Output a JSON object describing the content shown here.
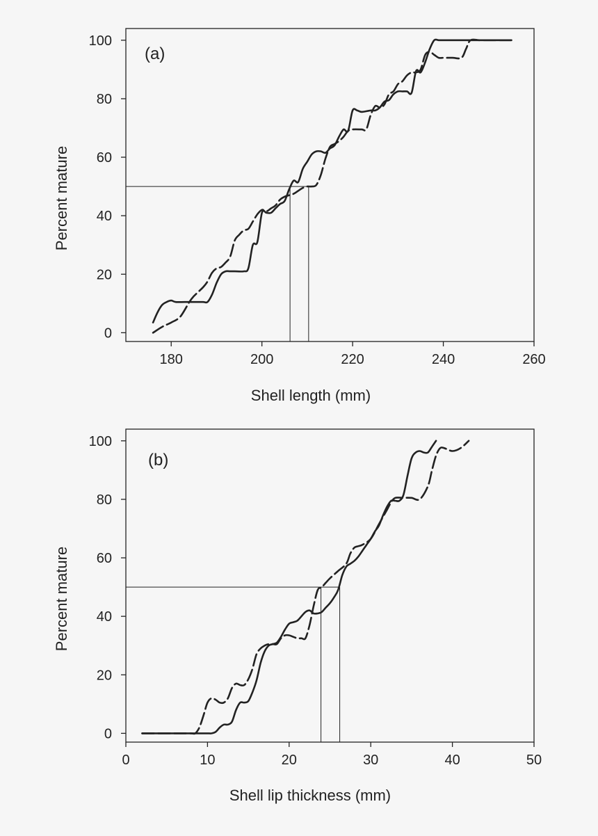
{
  "chart_data": [
    {
      "type": "line",
      "panel_label": "(a)",
      "xlabel": "Shell length (mm)",
      "ylabel": "Percent mature",
      "xlim": [
        170,
        260
      ],
      "ylim": [
        -3,
        104
      ],
      "xticks": [
        "180",
        "200",
        "220",
        "240",
        "260"
      ],
      "yticks": [
        "0",
        "20",
        "40",
        "60",
        "80",
        "100"
      ],
      "legend": "none",
      "grid": false,
      "reference_lines": {
        "y50": 50,
        "x50": [
          206.2,
          210.3
        ]
      },
      "series": [
        {
          "style": "solid",
          "color": "#222222",
          "x": [
            176,
            177,
            178,
            179,
            180,
            181,
            183,
            185,
            187,
            188,
            189,
            190,
            191,
            192,
            193,
            194,
            196,
            197,
            198,
            199,
            200,
            201,
            202,
            203,
            204,
            205,
            206,
            207,
            208,
            209,
            210,
            211,
            212,
            213,
            214,
            215,
            216,
            217,
            218,
            219,
            220,
            221,
            222,
            224,
            225,
            226,
            227,
            228,
            229,
            230,
            231,
            232,
            233,
            234,
            235,
            236,
            237,
            238,
            239,
            240,
            241,
            243,
            245,
            247,
            249,
            251,
            253,
            255
          ],
          "y": [
            3.5,
            7,
            9.5,
            10.5,
            11,
            10.5,
            10.5,
            10.5,
            10.5,
            10.5,
            13,
            17,
            20,
            21,
            21,
            21,
            21,
            22,
            30,
            31,
            41,
            41,
            41,
            42.5,
            44,
            45,
            49,
            52,
            51.5,
            56,
            58.5,
            61,
            62,
            62,
            61.5,
            63,
            64,
            67,
            69.5,
            69,
            76,
            76,
            75.5,
            76,
            76,
            77,
            79,
            79.5,
            81.5,
            82.5,
            82.5,
            82.5,
            82,
            89.5,
            89,
            92.5,
            97,
            100,
            100,
            100,
            100,
            100,
            100,
            100,
            100,
            100,
            100,
            100
          ]
        },
        {
          "style": "dashed",
          "color": "#222222",
          "x": [
            176,
            178,
            180,
            182,
            184,
            185,
            187,
            188,
            189,
            190,
            191,
            192,
            193,
            194,
            195,
            196,
            197,
            198,
            199,
            200,
            201,
            202,
            203,
            204,
            205,
            206,
            207,
            208,
            209,
            210,
            211,
            212,
            213,
            214,
            215,
            216,
            217,
            218,
            219,
            220,
            222,
            223,
            224,
            225,
            226,
            227,
            228,
            229,
            230,
            231,
            232,
            233,
            234,
            235,
            236,
            237,
            238,
            239,
            240,
            242,
            244,
            245,
            246,
            248,
            250,
            252,
            255
          ],
          "y": [
            0,
            2,
            3.5,
            5.5,
            10.5,
            12.5,
            15.5,
            17.5,
            20.5,
            22,
            22.5,
            24,
            26,
            31.5,
            33.5,
            35,
            35.5,
            38,
            40.5,
            42,
            41.5,
            42.5,
            43.5,
            45.5,
            46.5,
            47,
            47.5,
            48.5,
            49.5,
            50,
            50,
            50.5,
            54,
            59.5,
            63.5,
            64.5,
            65.5,
            67,
            69,
            69.5,
            69.5,
            69.5,
            74.5,
            77.5,
            77,
            78,
            81.5,
            82.5,
            85,
            86,
            88,
            89,
            89,
            90,
            95,
            96,
            95,
            94,
            94,
            94,
            94,
            97,
            100,
            100,
            100,
            100,
            100
          ]
        }
      ]
    },
    {
      "type": "line",
      "panel_label": "(b)",
      "xlabel": "Shell lip thickness (mm)",
      "ylabel": "Percent mature",
      "xlim": [
        0,
        50
      ],
      "ylim": [
        -3,
        104
      ],
      "xticks": [
        "0",
        "10",
        "20",
        "30",
        "40",
        "50"
      ],
      "yticks": [
        "0",
        "20",
        "40",
        "60",
        "80",
        "100"
      ],
      "legend": "none",
      "grid": false,
      "reference_lines": {
        "y50": 50,
        "x50": [
          23.9,
          26.2
        ]
      },
      "series": [
        {
          "style": "solid",
          "color": "#222222",
          "x": [
            2,
            4,
            6,
            8,
            9,
            10,
            10.5,
            11,
            11.5,
            12,
            12.5,
            13,
            13.5,
            14,
            14.5,
            15,
            15.5,
            16,
            16.5,
            17,
            17.5,
            18,
            18.5,
            19,
            19.5,
            20,
            20.5,
            21,
            21.5,
            22,
            22.5,
            23,
            23.5,
            24,
            24.5,
            25,
            25.5,
            26,
            26.5,
            27,
            27.5,
            28,
            28.5,
            29,
            29.5,
            30,
            30.5,
            31,
            31.5,
            32,
            32.5,
            33,
            33.5,
            34,
            34.5,
            35,
            35.5,
            36,
            36.5,
            37,
            37.5,
            38
          ],
          "y": [
            0,
            0,
            0,
            0,
            0,
            0,
            0,
            0.5,
            2,
            3,
            3,
            4,
            8,
            10.5,
            10.5,
            11,
            14,
            18,
            24,
            28,
            30,
            30.5,
            31,
            33,
            35.5,
            37.5,
            38,
            38.5,
            40,
            41.5,
            42,
            41,
            41,
            41.5,
            43,
            44.5,
            46.5,
            49,
            54,
            57,
            58,
            59,
            60.5,
            62.5,
            64.5,
            66.5,
            69,
            71,
            74.5,
            77.5,
            79.5,
            79.5,
            79.5,
            81.5,
            88,
            94,
            96,
            96.5,
            96,
            96,
            98,
            100
          ]
        },
        {
          "style": "dashed",
          "color": "#222222",
          "x": [
            2,
            4,
            6,
            7,
            8,
            8.5,
            9,
            9.5,
            10,
            10.5,
            11,
            11.5,
            12,
            12.5,
            13,
            13.5,
            14,
            14.5,
            15,
            15.5,
            16,
            16.5,
            17,
            17.5,
            18,
            18.5,
            19,
            19.5,
            20,
            20.5,
            21,
            21.5,
            22,
            22.5,
            23,
            23.5,
            24,
            24.5,
            25,
            26,
            27,
            27.5,
            28,
            28.5,
            29,
            30,
            31,
            32,
            32.5,
            33,
            34,
            35,
            36,
            37,
            37.5,
            38,
            38.5,
            39,
            40,
            41,
            42
          ],
          "y": [
            0,
            0,
            0,
            0,
            0,
            0,
            2,
            6,
            10.5,
            12,
            11.5,
            10.5,
            10.5,
            12,
            15.5,
            17,
            16.5,
            16.5,
            18.5,
            22,
            27,
            29,
            30,
            30.5,
            30.5,
            30.5,
            32.5,
            33.5,
            33.5,
            33,
            32.5,
            32.5,
            32.5,
            37,
            43.5,
            49,
            50,
            51.5,
            53,
            55.5,
            58,
            61.5,
            63.5,
            64,
            64.5,
            66.5,
            71.5,
            76.5,
            79,
            80.5,
            80.5,
            80.5,
            80,
            84.5,
            90,
            95,
            97.5,
            97.5,
            96.5,
            97.5,
            100
          ]
        }
      ]
    }
  ]
}
